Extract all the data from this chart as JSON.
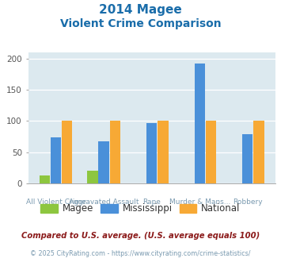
{
  "title_line1": "2014 Magee",
  "title_line2": "Violent Crime Comparison",
  "cat_top": [
    "",
    "Aggravated Assault",
    "",
    "Murder & Mans...",
    ""
  ],
  "cat_bot": [
    "All Violent Crime",
    "",
    "Rape",
    "",
    "Robbery"
  ],
  "magee": [
    13,
    21,
    0,
    0,
    0
  ],
  "mississippi": [
    74,
    67,
    97,
    192,
    79
  ],
  "national": [
    100,
    100,
    100,
    100,
    100
  ],
  "magee_color": "#8dc63f",
  "ms_color": "#4a90d9",
  "nat_color": "#f7a935",
  "bg_color": "#dce9ef",
  "ylim": [
    0,
    210
  ],
  "yticks": [
    0,
    50,
    100,
    150,
    200
  ],
  "footnote1": "Compared to U.S. average. (U.S. average equals 100)",
  "footnote2": "© 2025 CityRating.com - https://www.cityrating.com/crime-statistics/",
  "title_color": "#1a6daa",
  "footnote1_color": "#8b1a1a",
  "footnote2_color": "#7a9ab0",
  "legend_labels": [
    "Magee",
    "Mississippi",
    "National"
  ]
}
